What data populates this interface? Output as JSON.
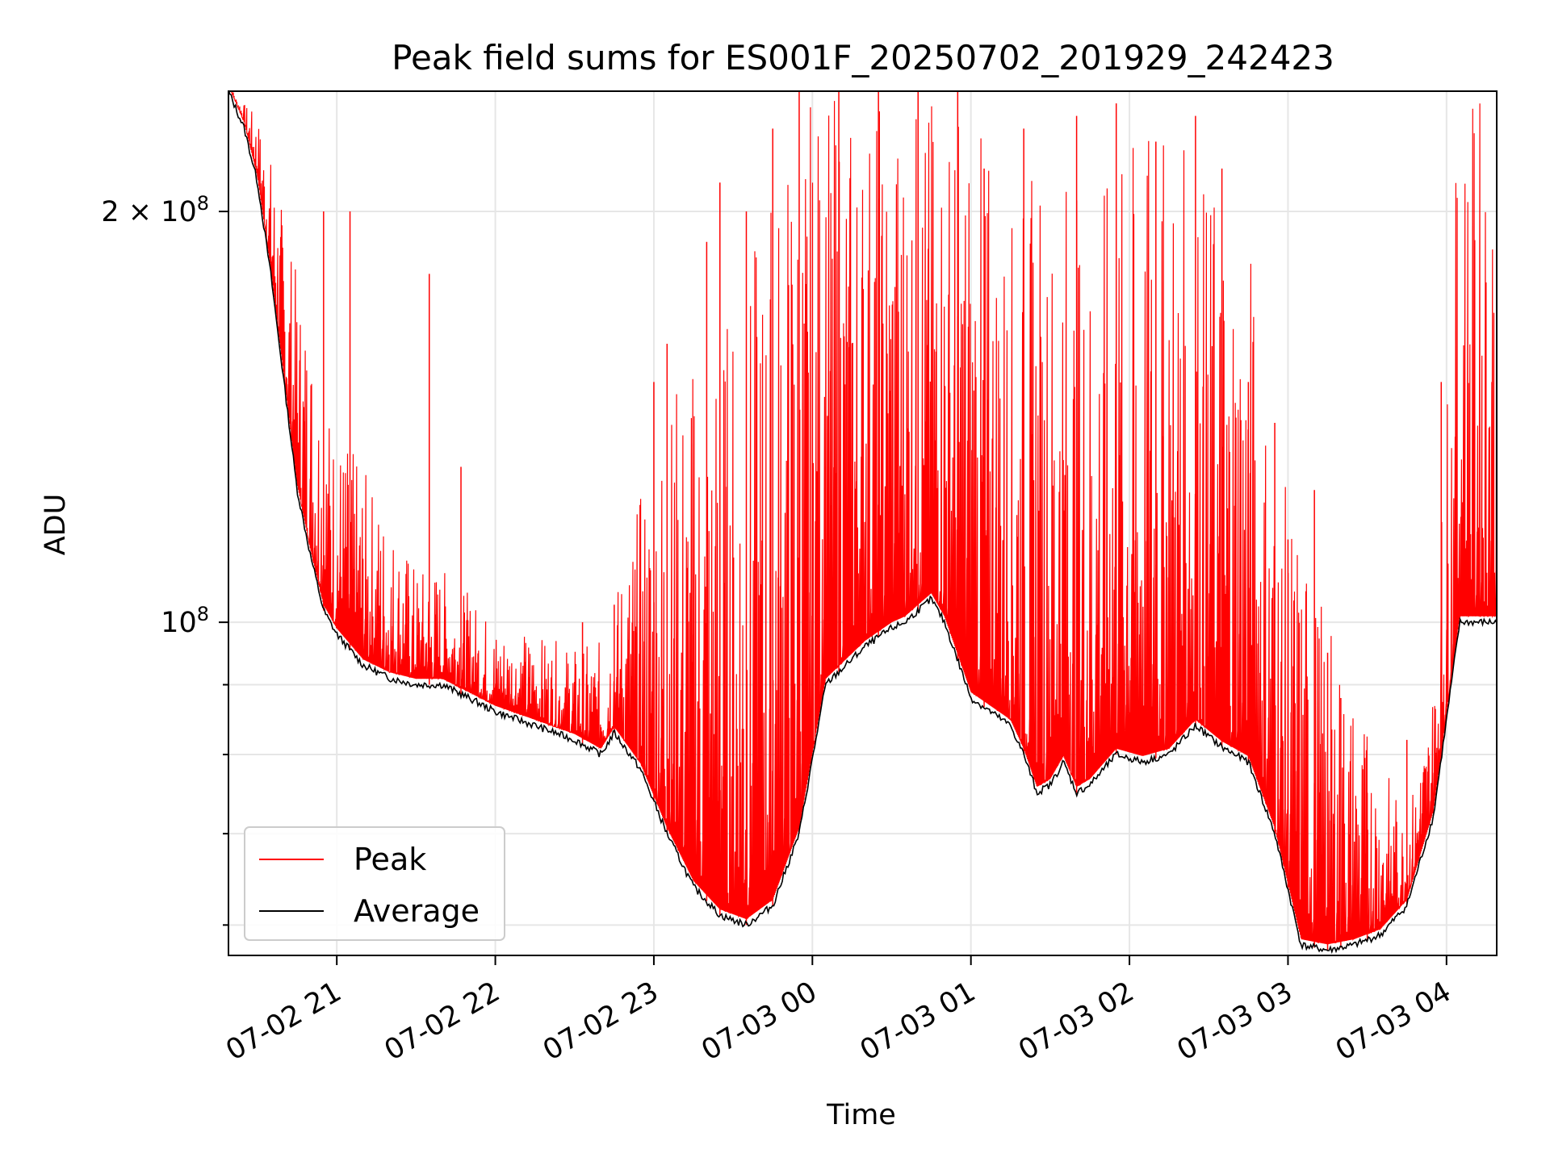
{
  "chart_data": {
    "type": "line",
    "title": "Peak field sums for ES001F_20250702_201929_242423",
    "xlabel": "Time",
    "ylabel": "ADU",
    "yscale": "log",
    "ylim": [
      57000000,
      245000000
    ],
    "xlim": [
      "07-02 20:19",
      "07-03 04:19"
    ],
    "grid": true,
    "legend_position": "lower-left",
    "x_ticks": [
      "07-02 21",
      "07-02 22",
      "07-02 23",
      "07-03 00",
      "07-03 01",
      "07-03 02",
      "07-03 03",
      "07-03 04"
    ],
    "y_tick_labels": [
      {
        "value": 200000000,
        "base": "2 × 10",
        "exp": "8"
      },
      {
        "value": 100000000,
        "base": "10",
        "exp": "8"
      }
    ],
    "y_minor_ticks": [
      60000000,
      70000000,
      80000000,
      90000000
    ],
    "x_times": [
      "07-02 20:19",
      "07-02 20:25",
      "07-02 20:30",
      "07-02 20:35",
      "07-02 20:40",
      "07-02 20:45",
      "07-02 20:50",
      "07-02 20:55",
      "07-02 21:00",
      "07-02 21:10",
      "07-02 21:20",
      "07-02 21:30",
      "07-02 21:40",
      "07-02 21:50",
      "07-02 22:00",
      "07-02 22:15",
      "07-02 22:30",
      "07-02 22:40",
      "07-02 22:45",
      "07-02 22:55",
      "07-02 23:05",
      "07-02 23:15",
      "07-02 23:25",
      "07-02 23:35",
      "07-02 23:45",
      "07-02 23:55",
      "07-03 00:05",
      "07-03 00:20",
      "07-03 00:30",
      "07-03 00:35",
      "07-03 00:40",
      "07-03 00:45",
      "07-03 00:50",
      "07-03 01:00",
      "07-03 01:15",
      "07-03 01:20",
      "07-03 01:25",
      "07-03 01:30",
      "07-03 01:35",
      "07-03 01:40",
      "07-03 01:45",
      "07-03 01:55",
      "07-03 02:05",
      "07-03 02:15",
      "07-03 02:25",
      "07-03 02:35",
      "07-03 02:45",
      "07-03 02:55",
      "07-03 03:05",
      "07-03 03:15",
      "07-03 03:25",
      "07-03 03:35",
      "07-03 03:45",
      "07-03 03:55",
      "07-03 04:05"
    ],
    "series": [
      {
        "name": "Average",
        "color": "#000000",
        "values": [
          245000000,
          230000000,
          210000000,
          180000000,
          150000000,
          125000000,
          112000000,
          102000000,
          98000000,
          93000000,
          91000000,
          90000000,
          90000000,
          88000000,
          86000000,
          84000000,
          82000000,
          80000000,
          83000000,
          78000000,
          70000000,
          64000000,
          61000000,
          60000000,
          62000000,
          70000000,
          90000000,
          96000000,
          99000000,
          100000000,
          102000000,
          104000000,
          100000000,
          88000000,
          84000000,
          80000000,
          75000000,
          76000000,
          79000000,
          75000000,
          76000000,
          80000000,
          79000000,
          80000000,
          84000000,
          81000000,
          79000000,
          70000000,
          58000000,
          57500000,
          58000000,
          59000000,
          62000000,
          72000000,
          100000000
        ]
      },
      {
        "name": "Peak",
        "color": "#ff0000",
        "upper_envelope": [
          245000000,
          240000000,
          235000000,
          220000000,
          200000000,
          180000000,
          170000000,
          150000000,
          140000000,
          130000000,
          120000000,
          110000000,
          110000000,
          105000000,
          100000000,
          98000000,
          96000000,
          97000000,
          105000000,
          125000000,
          150000000,
          160000000,
          170000000,
          180000000,
          220000000,
          245000000,
          245000000,
          245000000,
          245000000,
          245000000,
          245000000,
          245000000,
          245000000,
          245000000,
          200000000,
          210000000,
          220000000,
          200000000,
          230000000,
          210000000,
          200000000,
          220000000,
          230000000,
          230000000,
          220000000,
          210000000,
          200000000,
          130000000,
          120000000,
          100000000,
          90000000,
          80000000,
          72000000,
          90000000,
          245000000
        ],
        "spikes": [
          [
            "07-02 20:55",
            200000000
          ],
          [
            "07-02 21:05",
            200000000
          ],
          [
            "07-02 21:35",
            180000000
          ],
          [
            "07-02 21:47",
            130000000
          ],
          [
            "07-02 22:33",
            100000000
          ],
          [
            "07-02 22:45",
            103000000
          ],
          [
            "07-02 23:00",
            150000000
          ],
          [
            "07-02 23:05",
            160000000
          ],
          [
            "07-02 23:20",
            190000000
          ],
          [
            "07-02 23:25",
            210000000
          ],
          [
            "07-02 23:35",
            200000000
          ],
          [
            "07-02 23:45",
            230000000
          ],
          [
            "07-02 23:55",
            245000000
          ],
          [
            "07-03 00:10",
            245000000
          ],
          [
            "07-03 00:25",
            245000000
          ],
          [
            "07-03 00:40",
            245000000
          ],
          [
            "07-03 00:55",
            245000000
          ],
          [
            "07-03 01:05",
            215000000
          ],
          [
            "07-03 01:20",
            230000000
          ],
          [
            "07-03 01:40",
            235000000
          ],
          [
            "07-03 01:55",
            240000000
          ],
          [
            "07-03 02:10",
            225000000
          ],
          [
            "07-03 02:25",
            235000000
          ],
          [
            "07-03 02:35",
            215000000
          ],
          [
            "07-03 02:45",
            150000000
          ],
          [
            "07-03 02:55",
            140000000
          ],
          [
            "07-03 03:00",
            115000000
          ],
          [
            "07-03 03:10",
            125000000
          ],
          [
            "07-03 03:15",
            95000000
          ],
          [
            "07-03 03:20",
            88000000
          ],
          [
            "07-03 03:30",
            75000000
          ],
          [
            "07-03 03:45",
            82000000
          ],
          [
            "07-03 03:58",
            150000000
          ]
        ]
      }
    ]
  }
}
